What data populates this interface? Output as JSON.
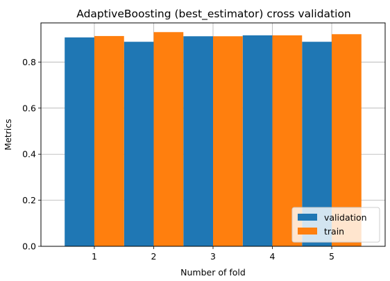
{
  "chart_data": {
    "type": "bar",
    "title": "AdaptiveBoosting (best_estimator) cross validation",
    "xlabel": "Number of fold",
    "ylabel": "Metrics",
    "categories": [
      "1",
      "2",
      "3",
      "4",
      "5"
    ],
    "series": [
      {
        "name": "validation",
        "color": "#1f77b4",
        "values": [
          0.907,
          0.888,
          0.912,
          0.916,
          0.888
        ]
      },
      {
        "name": "train",
        "color": "#ff7f0e",
        "values": [
          0.913,
          0.93,
          0.912,
          0.916,
          0.921
        ]
      }
    ],
    "ylim": [
      0,
      0.97
    ],
    "yticks": [
      "0.0",
      "0.2",
      "0.4",
      "0.6",
      "0.8"
    ],
    "grid": true,
    "legend_position": "lower-right"
  }
}
